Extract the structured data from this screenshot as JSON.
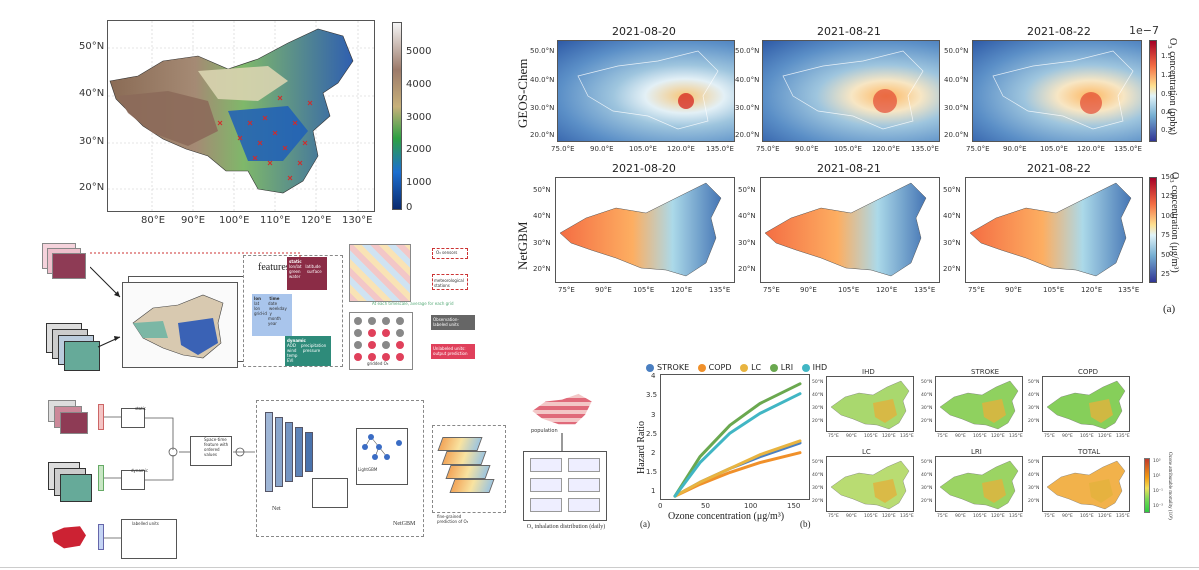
{
  "topo_map": {
    "lat_ticks": [
      "50°N",
      "40°N",
      "30°N",
      "20°N"
    ],
    "lon_ticks": [
      "80°E",
      "90°E",
      "100°E",
      "110°E",
      "120°E",
      "130°E"
    ],
    "colorbar_ticks": [
      "5000",
      "4000",
      "3000",
      "2000",
      "1000",
      "0"
    ]
  },
  "geos_chem": {
    "row_label": "GEOS-Chem",
    "dates": [
      "2021-08-20",
      "2021-08-21",
      "2021-08-22"
    ],
    "lat_ticks": [
      "50.0°N",
      "40.0°N",
      "30.0°N",
      "20.0°N"
    ],
    "lon_ticks": [
      "75.0°E",
      "90.0°E",
      "105.0°E",
      "120.0°E",
      "135.0°E"
    ],
    "colorbar_exponent": "1e−7",
    "colorbar_ticks": [
      "1.5",
      "1.2",
      "0.9",
      "0.6",
      "0.3"
    ],
    "colorbar_label": "O₃ concentration (ppbv)"
  },
  "netgbm": {
    "row_label": "NetGBM",
    "dates": [
      "2021-08-20",
      "2021-08-21",
      "2021-08-22"
    ],
    "lat_ticks": [
      "50°N",
      "40°N",
      "30°N",
      "20°N"
    ],
    "lon_ticks": [
      "75°E",
      "90°E",
      "105°E",
      "120°E",
      "135°E"
    ],
    "colorbar_ticks": [
      "150",
      "125",
      "100",
      "75",
      "50",
      "25"
    ],
    "colorbar_label": "O₃ concentration (μg/m³)",
    "panel_tag": "(a)"
  },
  "workflow_top": {
    "features_title": "features",
    "static_title": "static",
    "static_items": "lon/lat   latitude\ngreen     surface\nwater",
    "time_title": "lon      time",
    "time_items": "lat       date\nlon       weekday\ngrid-id  y\n           month\n           year",
    "dynamic_title": "dynamic",
    "dynamic_items": "AOD    precipitation\nwind     pressure\ntemp\nEVI",
    "legend_sensors": "O₃ sensors",
    "legend_stations": "meteorological stations",
    "legend_obs": "Observation-labeled units",
    "legend_pred": "Unlabeled units: output prediction",
    "grid_note": "At each timescale, average for each grid",
    "grid_label": "gridded O₃"
  },
  "workflow_bottom": {
    "static_label": "static",
    "dynamic_label": "dynamic",
    "spatiotemporal": "Space-time feature with ordered values",
    "net_label": "Net",
    "lightgbm_label": "LightGBM",
    "netgbm_label": "NetGBM",
    "labelled_units": "labelled units",
    "fine_grained": "fine-grained prediction of O₃",
    "population": "population",
    "inhalation": "O₃ inhalation distribution (daily)"
  },
  "hazard_chart": {
    "legend": [
      "STROKE",
      "COPD",
      "LC",
      "LRI",
      "IHD"
    ],
    "ylabel": "Hazard Ratio",
    "xlabel": "Ozone concentration (μg/m³)",
    "y_ticks": [
      "4",
      "3.5",
      "3",
      "2.5",
      "2",
      "1.5",
      "1"
    ],
    "x_ticks": [
      "0",
      "50",
      "100",
      "150"
    ],
    "panel_tag": "(a)"
  },
  "mortality_maps": {
    "titles": [
      "IHD",
      "STROKE",
      "COPD",
      "LC",
      "LRI",
      "TOTAL"
    ],
    "lat_ticks": [
      "50°N",
      "40°N",
      "30°N",
      "20°N"
    ],
    "lon_ticks": [
      "75°E",
      "90°E",
      "105°E",
      "120°E",
      "135°E"
    ],
    "colorbar_ticks": [
      "10³",
      "10¹",
      "10⁻¹",
      "10⁻³"
    ],
    "colorbar_label": "Ozone attributable mortality (10³)",
    "panel_tag": "(b)"
  },
  "chart_data": {
    "type": "line",
    "xlabel": "Ozone concentration (μg/m³)",
    "ylabel": "Hazard Ratio",
    "xlim": [
      0,
      150
    ],
    "ylim": [
      0.9,
      4.1
    ],
    "legend_placement": "top",
    "series": [
      {
        "name": "STROKE",
        "color": "#4a7fc1",
        "x": [
          15,
          40,
          70,
          100,
          140
        ],
        "y": [
          1.0,
          1.35,
          1.7,
          2.0,
          2.35
        ]
      },
      {
        "name": "COPD",
        "color": "#f0902a",
        "x": [
          15,
          40,
          70,
          100,
          140
        ],
        "y": [
          1.0,
          1.3,
          1.6,
          1.85,
          2.1
        ]
      },
      {
        "name": "LC",
        "color": "#e8b440",
        "x": [
          15,
          40,
          70,
          100,
          140
        ],
        "y": [
          1.0,
          1.35,
          1.7,
          2.05,
          2.4
        ]
      },
      {
        "name": "LRI",
        "color": "#6aa84f",
        "x": [
          15,
          40,
          70,
          100,
          140
        ],
        "y": [
          1.0,
          2.0,
          2.8,
          3.35,
          3.85
        ]
      },
      {
        "name": "IHD",
        "color": "#41b6c4",
        "x": [
          15,
          40,
          70,
          100,
          140
        ],
        "y": [
          1.0,
          1.85,
          2.6,
          3.1,
          3.6
        ]
      }
    ]
  }
}
